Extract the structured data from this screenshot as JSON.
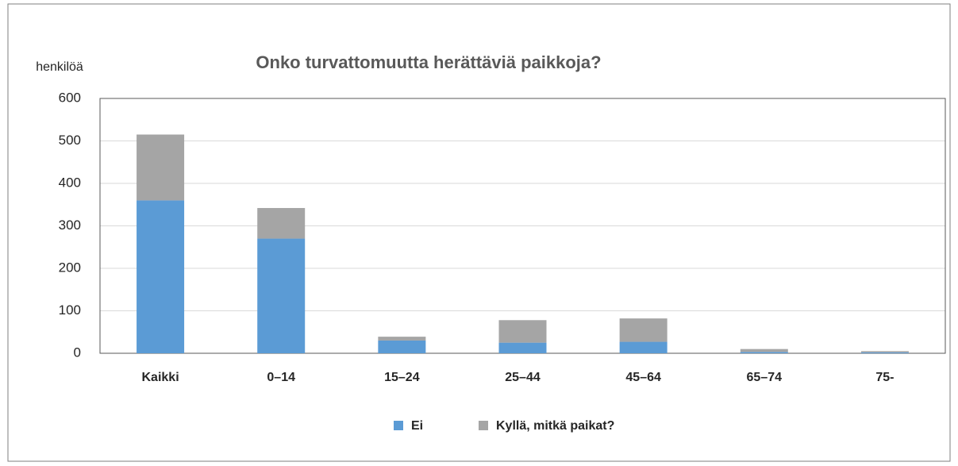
{
  "chart_data": {
    "type": "stacked_bar",
    "title": "Onko turvattomuutta herättäviä paikkoja?",
    "y_label": "henkilöä",
    "categories": [
      "Kaikki",
      "0–14",
      "15–24",
      "25–44",
      "45–64",
      "65–74",
      "75-"
    ],
    "series": [
      {
        "name": "Ei",
        "color": "#5b9bd5",
        "values": [
          360,
          270,
          30,
          25,
          27,
          3,
          2
        ]
      },
      {
        "name": "Kyllä, mitkä paikat?",
        "color": "#a5a5a5",
        "values": [
          155,
          72,
          9,
          53,
          55,
          7,
          3
        ]
      }
    ],
    "ylim": [
      0,
      600
    ],
    "yticks": [
      0,
      100,
      200,
      300,
      400,
      500,
      600
    ],
    "grid": true,
    "legend": "bottom"
  }
}
